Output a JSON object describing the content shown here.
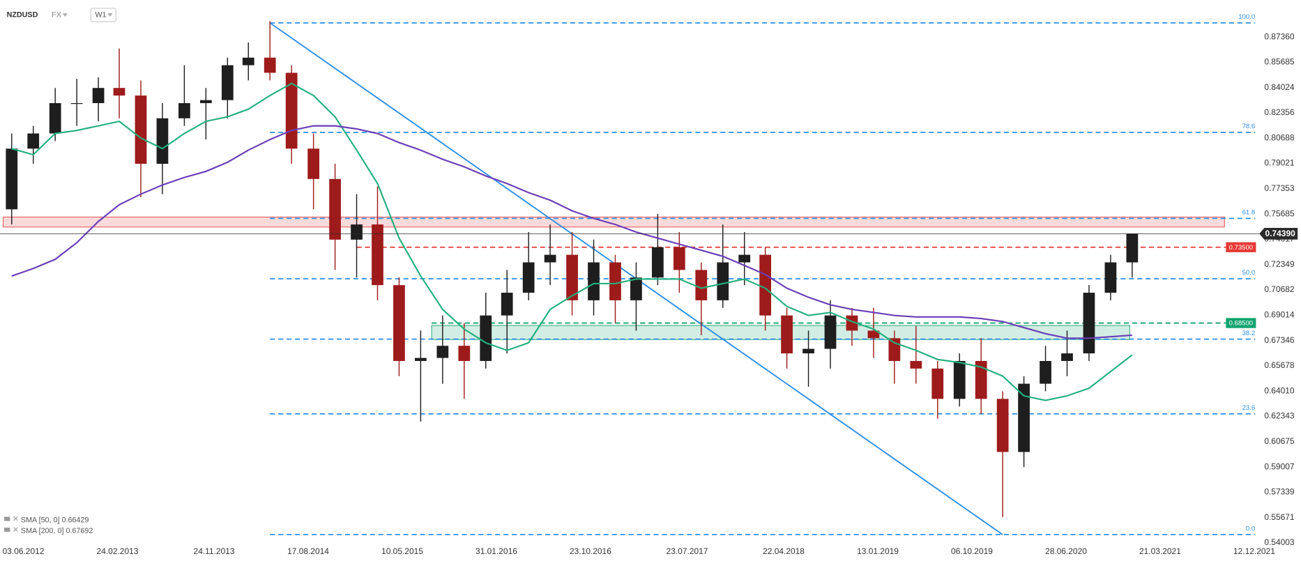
{
  "header": {
    "symbol": "NZDUSD",
    "market": "FX",
    "interval": "W1"
  },
  "chart_data": {
    "type": "candlestick",
    "x": [
      "01.05.2012",
      "01.07.2012",
      "01.09.2012",
      "01.11.2012",
      "01.01.2013",
      "01.03.2013",
      "01.05.2013",
      "01.07.2013",
      "01.09.2013",
      "01.11.2013",
      "01.01.2014",
      "01.03.2014",
      "01.05.2014",
      "01.07.2014",
      "01.09.2014",
      "01.11.2014",
      "01.01.2015",
      "01.03.2015",
      "01.05.2015",
      "01.07.2015",
      "01.09.2015",
      "01.11.2015",
      "01.01.2016",
      "01.03.2016",
      "01.05.2016",
      "01.07.2016",
      "01.09.2016",
      "01.11.2016",
      "01.01.2017",
      "01.03.2017",
      "01.05.2017",
      "01.07.2017",
      "01.09.2017",
      "01.11.2017",
      "01.01.2018",
      "01.03.2018",
      "01.05.2018",
      "01.07.2018",
      "01.09.2018",
      "01.11.2018",
      "01.01.2019",
      "01.03.2019",
      "01.05.2019",
      "01.07.2019",
      "01.09.2019",
      "01.11.2019",
      "01.01.2020",
      "01.03.2020",
      "01.05.2020",
      "01.07.2020",
      "01.09.2020",
      "01.11.2020",
      "01.01.2021"
    ],
    "open": [
      0.76,
      0.8,
      0.81,
      0.83,
      0.83,
      0.84,
      0.835,
      0.79,
      0.82,
      0.83,
      0.832,
      0.855,
      0.86,
      0.85,
      0.8,
      0.78,
      0.74,
      0.75,
      0.71,
      0.66,
      0.662,
      0.67,
      0.66,
      0.69,
      0.705,
      0.725,
      0.73,
      0.7,
      0.725,
      0.7,
      0.715,
      0.735,
      0.72,
      0.7,
      0.725,
      0.73,
      0.69,
      0.665,
      0.668,
      0.69,
      0.68,
      0.675,
      0.66,
      0.655,
      0.635,
      0.66,
      0.635,
      0.6,
      0.645,
      0.66,
      0.665,
      0.705,
      0.725
    ],
    "high": [
      0.81,
      0.815,
      0.84,
      0.846,
      0.847,
      0.866,
      0.845,
      0.83,
      0.855,
      0.84,
      0.86,
      0.87,
      0.884,
      0.855,
      0.81,
      0.79,
      0.77,
      0.775,
      0.715,
      0.68,
      0.69,
      0.685,
      0.705,
      0.72,
      0.745,
      0.75,
      0.745,
      0.74,
      0.73,
      0.725,
      0.757,
      0.745,
      0.725,
      0.75,
      0.745,
      0.735,
      0.695,
      0.68,
      0.7,
      0.695,
      0.695,
      0.68,
      0.683,
      0.66,
      0.665,
      0.675,
      0.64,
      0.65,
      0.67,
      0.68,
      0.71,
      0.73,
      0.7439
    ],
    "low": [
      0.75,
      0.79,
      0.805,
      0.815,
      0.818,
      0.82,
      0.768,
      0.77,
      0.815,
      0.806,
      0.82,
      0.845,
      0.845,
      0.79,
      0.76,
      0.72,
      0.715,
      0.7,
      0.65,
      0.62,
      0.645,
      0.635,
      0.655,
      0.665,
      0.7,
      0.71,
      0.69,
      0.69,
      0.685,
      0.68,
      0.71,
      0.705,
      0.677,
      0.695,
      0.71,
      0.68,
      0.655,
      0.643,
      0.655,
      0.67,
      0.662,
      0.645,
      0.645,
      0.622,
      0.63,
      0.625,
      0.557,
      0.59,
      0.64,
      0.65,
      0.66,
      0.7,
      0.715
    ],
    "close": [
      0.8,
      0.81,
      0.83,
      0.83,
      0.84,
      0.835,
      0.79,
      0.82,
      0.83,
      0.832,
      0.855,
      0.86,
      0.85,
      0.8,
      0.78,
      0.74,
      0.75,
      0.71,
      0.66,
      0.662,
      0.67,
      0.66,
      0.69,
      0.705,
      0.725,
      0.73,
      0.7,
      0.725,
      0.7,
      0.715,
      0.735,
      0.72,
      0.7,
      0.725,
      0.73,
      0.69,
      0.665,
      0.668,
      0.69,
      0.68,
      0.675,
      0.66,
      0.655,
      0.635,
      0.66,
      0.635,
      0.6,
      0.645,
      0.66,
      0.665,
      0.705,
      0.725,
      0.7439
    ],
    "up_color": "#1e1e1e",
    "down_color": "#9e1b1b",
    "xlim": [
      "29.03.2012",
      "31.12.2021"
    ],
    "xticks": [
      "03.06.2012",
      "24.02.2013",
      "24.11.2013",
      "17.08.2014",
      "10.05.2015",
      "31.01.2016",
      "23.10.2016",
      "23.07.2017",
      "22.04.2018",
      "13.01.2019",
      "06.10.2019",
      "28.06.2020",
      "21.03.2021",
      "12.12.2021"
    ],
    "ylim": [
      0.538,
      0.898
    ],
    "yticks": [
      {
        "value": 0.8736,
        "label": "0.87360"
      },
      0.85685,
      0.84024,
      0.82356,
      0.80688,
      0.79021,
      0.77353,
      0.75685,
      0.74017,
      0.72349,
      0.70682,
      0.69014,
      0.67346,
      0.65678,
      {
        "value": 0.6401,
        "label": "0.64010"
      },
      0.62343,
      0.60675,
      0.59007,
      0.57339,
      0.55671,
      0.54003
    ],
    "lines": [
      {
        "name": "SMA [50, 0]",
        "color": "#22b07d",
        "last_value": 0.66429,
        "values": [
          0.8,
          0.796,
          0.81,
          0.812,
          0.815,
          0.818,
          0.807,
          0.8,
          0.81,
          0.818,
          0.821,
          0.826,
          0.835,
          0.843,
          0.835,
          0.821,
          0.799,
          0.777,
          0.741,
          0.716,
          0.694,
          0.681,
          0.672,
          0.667,
          0.672,
          0.694,
          0.703,
          0.711,
          0.711,
          0.714,
          0.714,
          0.714,
          0.708,
          0.711,
          0.714,
          0.708,
          0.696,
          0.69,
          0.692,
          0.686,
          0.681,
          0.672,
          0.667,
          0.661,
          0.659,
          0.656,
          0.65,
          0.637,
          0.634,
          0.637,
          0.642,
          0.653,
          0.664
        ]
      },
      {
        "name": "SMA [200, 0]",
        "color": "#6a3db8",
        "last_value": 0.67692,
        "values": [
          0.716,
          0.721,
          0.727,
          0.738,
          0.752,
          0.763,
          0.77,
          0.776,
          0.781,
          0.785,
          0.791,
          0.799,
          0.806,
          0.812,
          0.815,
          0.815,
          0.813,
          0.81,
          0.804,
          0.799,
          0.793,
          0.788,
          0.782,
          0.777,
          0.771,
          0.766,
          0.759,
          0.754,
          0.75,
          0.745,
          0.741,
          0.737,
          0.733,
          0.729,
          0.723,
          0.717,
          0.708,
          0.702,
          0.697,
          0.694,
          0.692,
          0.69,
          0.689,
          0.689,
          0.689,
          0.688,
          0.686,
          0.682,
          0.678,
          0.675,
          0.675,
          0.676,
          0.677
        ]
      }
    ],
    "trendline": {
      "x": [
        "01.05.2014",
        "01.01.2020"
      ],
      "values": [
        0.8829,
        0.5455
      ],
      "color": "#2d8fe8"
    },
    "fibonacci": {
      "high": 0.8829,
      "low": 0.5455,
      "start": "01.05.2014",
      "color": "#2d8fe8",
      "levels": [
        {
          "value": 100,
          "label": "100.0"
        },
        78.6,
        61.8,
        {
          "value": 50,
          "label": "50.0"
        },
        38.2,
        23.6,
        {
          "value": 0,
          "label": "0.0"
        }
      ]
    },
    "zones": [
      {
        "from": 0.7483,
        "to": 0.7549,
        "start": "07.04.2012",
        "end": "19.09.2021",
        "color": "#e04848"
      },
      {
        "from": 0.6741,
        "to": 0.6834,
        "start": "01.08.2015",
        "end": "25.12.2020",
        "color": "#1fa674"
      }
    ],
    "levels": [
      {
        "value": 0.735,
        "label": "0.73500",
        "start": "01.01.2015",
        "color": "#e53935"
      },
      {
        "value": 0.685,
        "label": "0.68500",
        "start": "01.08.2015",
        "color": "#12a36e"
      }
    ],
    "last_price": {
      "value": 0.7439,
      "label": "0.74390",
      "color": "#2b2b2b"
    }
  }
}
